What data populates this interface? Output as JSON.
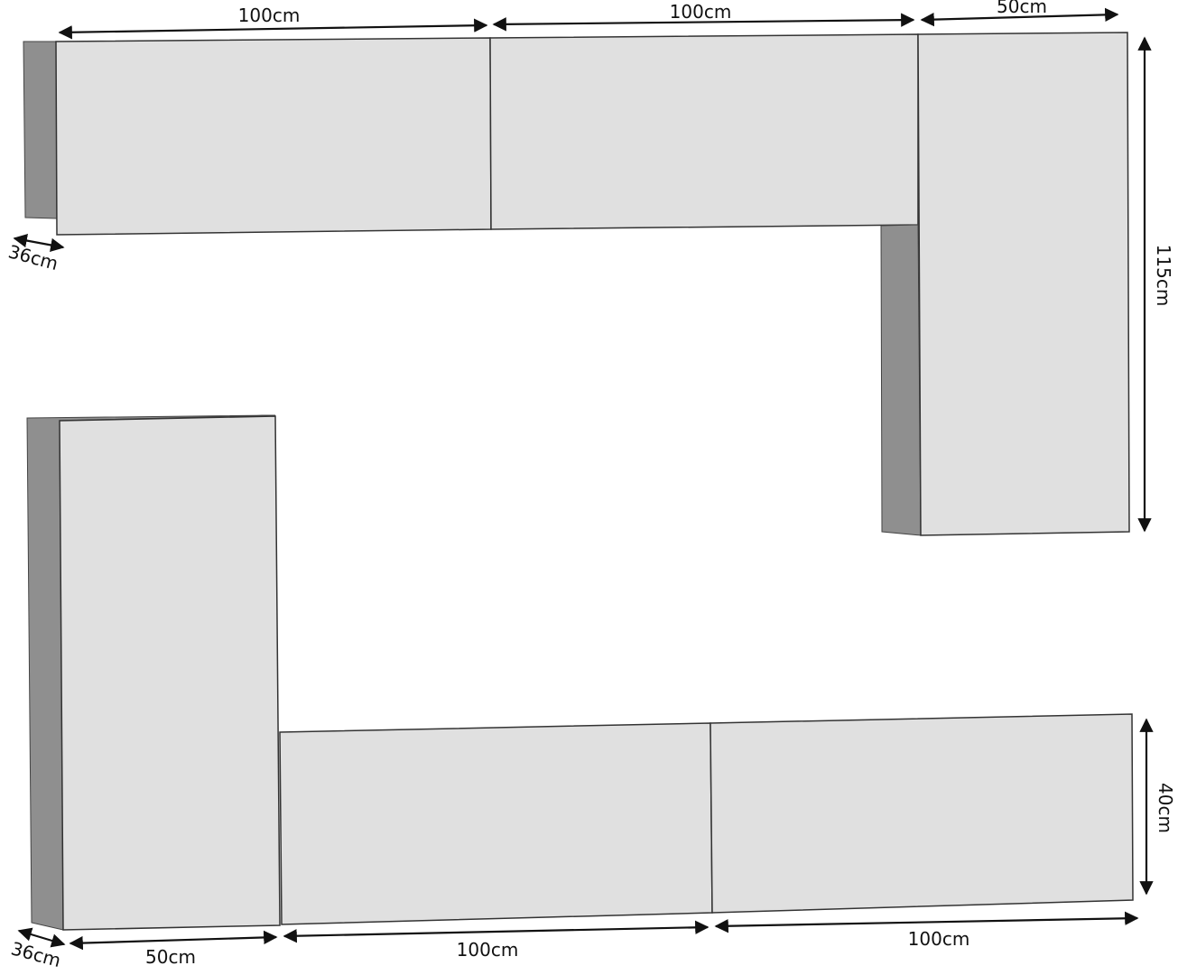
{
  "colors": {
    "front": "#e0e0e0",
    "side": "#8f8f8f",
    "line": "#111111",
    "background": "#ffffff"
  },
  "dimensions": {
    "top_left_width": "100cm",
    "top_middle_width": "100cm",
    "top_right_width": "50cm",
    "tall_right_height": "115cm",
    "top_depth": "36cm",
    "bottom_depth": "36cm",
    "bottom_left_width": "50cm",
    "bottom_middle_width": "100cm",
    "bottom_right_width": "100cm",
    "bottom_height": "40cm"
  }
}
